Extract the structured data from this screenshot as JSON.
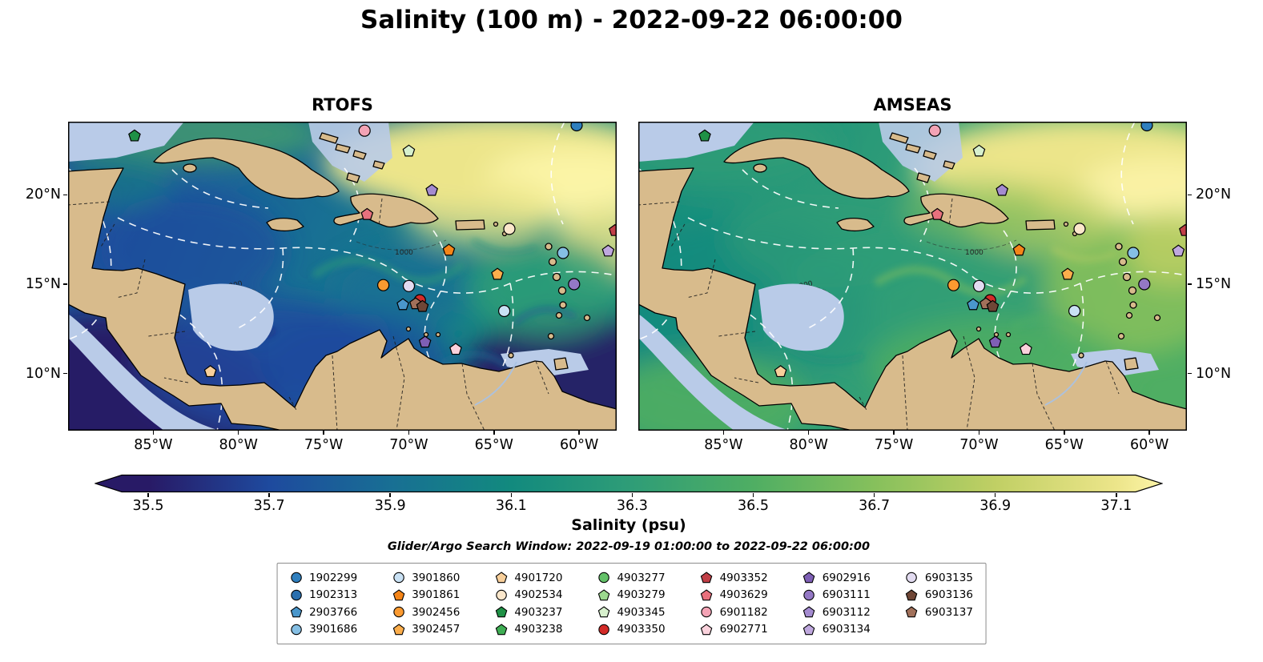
{
  "figure": {
    "title": "Salinity (100 m) - 2022-09-22 06:00:00",
    "search_window": "Glider/Argo Search Window: 2022-09-19 01:00:00 to 2022-09-22 06:00:00"
  },
  "panels": [
    {
      "title": "RTOFS"
    },
    {
      "title": "AMSEAS"
    }
  ],
  "axes": {
    "x_tick_labels": [
      "85°W",
      "80°W",
      "75°W",
      "70°W",
      "65°W",
      "60°W"
    ],
    "y_tick_labels": [
      "20°N",
      "15°N",
      "10°N"
    ]
  },
  "colorbar": {
    "label": "Salinity (psu)",
    "tick_labels": [
      "35.5",
      "35.7",
      "35.9",
      "36.1",
      "36.3",
      "36.5",
      "36.7",
      "36.9",
      "37.1"
    ],
    "colors": [
      "#281a66",
      "#1e4a9e",
      "#186f94",
      "#128a7e",
      "#2f9d77",
      "#4fae63",
      "#86c05c",
      "#c0cf64",
      "#ece58a",
      "#fdf5a8"
    ]
  },
  "map": {
    "depth_contour_label": "1000",
    "land_color": "#d8bb8c",
    "shelf_color": "#b9cbe8"
  },
  "legend": {
    "entries": [
      {
        "id": "1902299",
        "shape": "circle",
        "color": "#2f7fbe"
      },
      {
        "id": "1902313",
        "shape": "circle",
        "color": "#2a6fae"
      },
      {
        "id": "2903766",
        "shape": "pentagon",
        "color": "#4a97cc"
      },
      {
        "id": "3901686",
        "shape": "circle",
        "color": "#85bfe4"
      },
      {
        "id": "3901860",
        "shape": "circle",
        "color": "#c9e1f4"
      },
      {
        "id": "3901861",
        "shape": "pentagon",
        "color": "#f58518"
      },
      {
        "id": "3902456",
        "shape": "circle",
        "color": "#fb9a30"
      },
      {
        "id": "3902457",
        "shape": "pentagon",
        "color": "#fcae4c"
      },
      {
        "id": "4901720",
        "shape": "pentagon",
        "color": "#f8cf9a"
      },
      {
        "id": "4902534",
        "shape": "circle",
        "color": "#fbe7cb"
      },
      {
        "id": "4903237",
        "shape": "pentagon",
        "color": "#1f9146"
      },
      {
        "id": "4903238",
        "shape": "pentagon",
        "color": "#3fae54"
      },
      {
        "id": "4903277",
        "shape": "circle",
        "color": "#63c168"
      },
      {
        "id": "4903279",
        "shape": "pentagon",
        "color": "#9cd88e"
      },
      {
        "id": "4903345",
        "shape": "pentagon",
        "color": "#d7f0cd"
      },
      {
        "id": "4903350",
        "shape": "circle",
        "color": "#d32b28"
      },
      {
        "id": "4903352",
        "shape": "pentagon",
        "color": "#c13f47"
      },
      {
        "id": "4903629",
        "shape": "pentagon",
        "color": "#e8717d"
      },
      {
        "id": "6901182",
        "shape": "circle",
        "color": "#f3a3b5"
      },
      {
        "id": "6902771",
        "shape": "pentagon",
        "color": "#fad2dc"
      },
      {
        "id": "6902916",
        "shape": "pentagon",
        "color": "#7e5fb5"
      },
      {
        "id": "6903111",
        "shape": "circle",
        "color": "#9478c5"
      },
      {
        "id": "6903112",
        "shape": "pentagon",
        "color": "#a48bd0"
      },
      {
        "id": "6903134",
        "shape": "pentagon",
        "color": "#bfa8de"
      },
      {
        "id": "6903135",
        "shape": "circle",
        "color": "#e2dbf0"
      },
      {
        "id": "6903136",
        "shape": "pentagon",
        "color": "#6f4636"
      },
      {
        "id": "6903137",
        "shape": "pentagon",
        "color": "#a1705a"
      }
    ]
  },
  "chart_data": {
    "type": "heatmap",
    "title": "Salinity (100 m) - 2022-09-22 06:00:00",
    "variable": "Salinity (psu)",
    "panels": [
      {
        "name": "RTOFS",
        "summary": "Salinity field at 100 m: widespread fresher water (~35.5-36.1 psu, dark blue/navy) over the central, southwest and southeast Caribbean; saltier water (~36.9-37.1 psu, pale yellow) northeast of the Greater Antilles"
      },
      {
        "name": "AMSEAS",
        "summary": "Salinity field at 100 m: mostly ~36.3-36.7 psu (green) across the Caribbean basin, saltier (~36.9-37.1 psu, pale yellow) in the Atlantic northeast of the Antilles"
      }
    ],
    "colorbar": {
      "label": "Salinity (psu)",
      "ticks": [
        35.5,
        35.7,
        35.9,
        36.1,
        36.3,
        36.5,
        36.7,
        36.9,
        37.1
      ]
    },
    "x_axis": {
      "labels": [
        "85°W",
        "80°W",
        "75°W",
        "70°W",
        "65°W",
        "60°W"
      ],
      "ticks_deg_west": [
        85,
        80,
        75,
        70,
        65,
        60
      ]
    },
    "y_axis": {
      "labels": [
        "20°N",
        "15°N",
        "10°N"
      ],
      "ticks_deg_north": [
        20,
        15,
        10
      ]
    },
    "markers": [
      {
        "id": "1902299",
        "lon": -60.15,
        "lat": 23.9
      },
      {
        "id": "6901182",
        "lon": -72.6,
        "lat": 23.6
      },
      {
        "id": "4903237",
        "lon": -86.1,
        "lat": 23.3
      },
      {
        "id": "4903345",
        "lon": -70.0,
        "lat": 22.45
      },
      {
        "id": "6903112",
        "lon": -68.65,
        "lat": 20.25
      },
      {
        "id": "4903629",
        "lon": -72.45,
        "lat": 18.9
      },
      {
        "id": "4902534",
        "lon": -64.1,
        "lat": 18.1
      },
      {
        "id": "4903352",
        "lon": -57.9,
        "lat": 18.0
      },
      {
        "id": "3901861",
        "lon": -67.65,
        "lat": 16.9
      },
      {
        "id": "6903134",
        "lon": -58.3,
        "lat": 16.85
      },
      {
        "id": "3901686",
        "lon": -60.95,
        "lat": 16.75
      },
      {
        "id": "3902457",
        "lon": -64.8,
        "lat": 15.55
      },
      {
        "id": "6903111",
        "lon": -60.3,
        "lat": 15.0
      },
      {
        "id": "3902456",
        "lon": -71.5,
        "lat": 14.95
      },
      {
        "id": "6903135",
        "lon": -70.0,
        "lat": 14.9
      },
      {
        "id": "4903350",
        "lon": -69.35,
        "lat": 14.1
      },
      {
        "id": "6903137",
        "lon": -69.6,
        "lat": 13.9
      },
      {
        "id": "2903766",
        "lon": -70.35,
        "lat": 13.85
      },
      {
        "id": "6903136",
        "lon": -69.2,
        "lat": 13.75
      },
      {
        "id": "3901860",
        "lon": -64.4,
        "lat": 13.5
      },
      {
        "id": "6902916",
        "lon": -69.05,
        "lat": 11.75
      },
      {
        "id": "6902771",
        "lon": -67.25,
        "lat": 11.35
      },
      {
        "id": "4901720",
        "lon": -81.65,
        "lat": 10.1
      }
    ]
  }
}
